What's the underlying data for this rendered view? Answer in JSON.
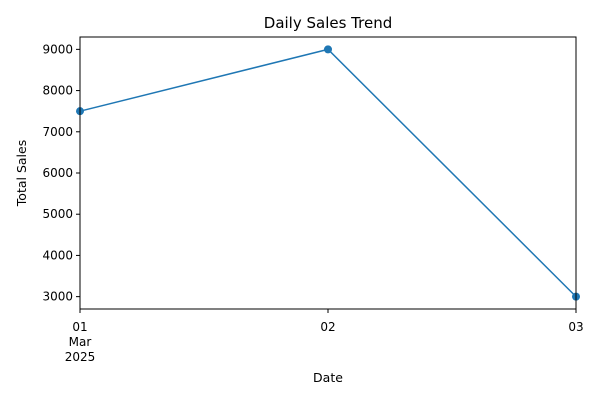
{
  "chart_data": {
    "type": "line",
    "title": "Daily Sales Trend",
    "xlabel": "Date",
    "ylabel": "Total Sales",
    "x": [
      "2025-03-01",
      "2025-03-02",
      "2025-03-03"
    ],
    "series": [
      {
        "values": [
          7500,
          9000,
          3000
        ],
        "color": "#1f77b4",
        "marker": "circle"
      }
    ],
    "x_ticks": [
      {
        "day": "01",
        "month": "Mar",
        "year": "2025"
      },
      {
        "day": "02",
        "month": "",
        "year": ""
      },
      {
        "day": "03",
        "month": "",
        "year": ""
      }
    ],
    "y_ticks": [
      3000,
      4000,
      5000,
      6000,
      7000,
      8000,
      9000
    ],
    "ylim": [
      2700,
      9300
    ],
    "xlim": [
      "2025-03-01",
      "2025-03-03"
    ],
    "grid": false,
    "legend": "none"
  }
}
